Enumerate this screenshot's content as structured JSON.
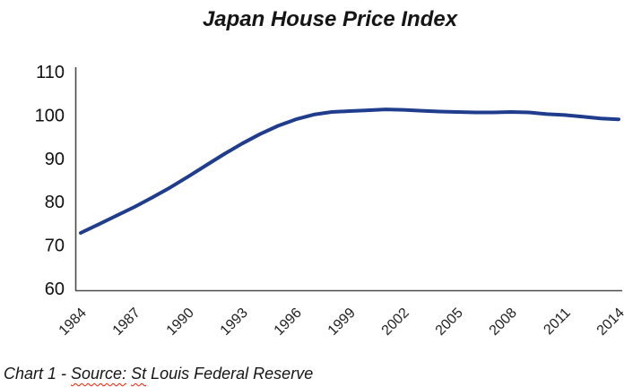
{
  "chart_data": {
    "type": "line",
    "title": "Japan House Price Index",
    "xlabel": "",
    "ylabel": "",
    "x": [
      1984,
      1985,
      1986,
      1987,
      1988,
      1989,
      1990,
      1991,
      1992,
      1993,
      1994,
      1995,
      1996,
      1997,
      1998,
      1999,
      2000,
      2001,
      2002,
      2003,
      2004,
      2005,
      2006,
      2007,
      2008,
      2009,
      2010,
      2011,
      2012,
      2013,
      2014
    ],
    "values": [
      72.8,
      74.8,
      76.8,
      78.8,
      81.0,
      83.3,
      85.8,
      88.4,
      91.0,
      93.4,
      95.6,
      97.5,
      99.0,
      100.1,
      100.7,
      100.9,
      101.1,
      101.3,
      101.2,
      101.0,
      100.8,
      100.7,
      100.6,
      100.6,
      100.7,
      100.6,
      100.2,
      100.0,
      99.6,
      99.2,
      99.0
    ],
    "x_tick_labels": [
      "1984",
      "1987",
      "1990",
      "1993",
      "1996",
      "1999",
      "2002",
      "2005",
      "2008",
      "2011",
      "2014"
    ],
    "x_tick_years": [
      1984,
      1987,
      1990,
      1993,
      1996,
      1999,
      2002,
      2005,
      2008,
      2011,
      2014
    ],
    "y_ticks": [
      110,
      100,
      90,
      80,
      70,
      60
    ],
    "ylim": [
      60,
      110
    ],
    "grid": false,
    "legend": "none",
    "line_color": "#1F3D8C",
    "axis_color": "#4a4a4a"
  },
  "caption": {
    "segments": [
      {
        "text": "Chart 1 - ",
        "misspelled": false
      },
      {
        "text": "Source:",
        "misspelled": true
      },
      {
        "text": " ",
        "misspelled": false
      },
      {
        "text": "St",
        "misspelled": true
      },
      {
        "text": " Louis Federal Reserve",
        "misspelled": false
      }
    ]
  }
}
